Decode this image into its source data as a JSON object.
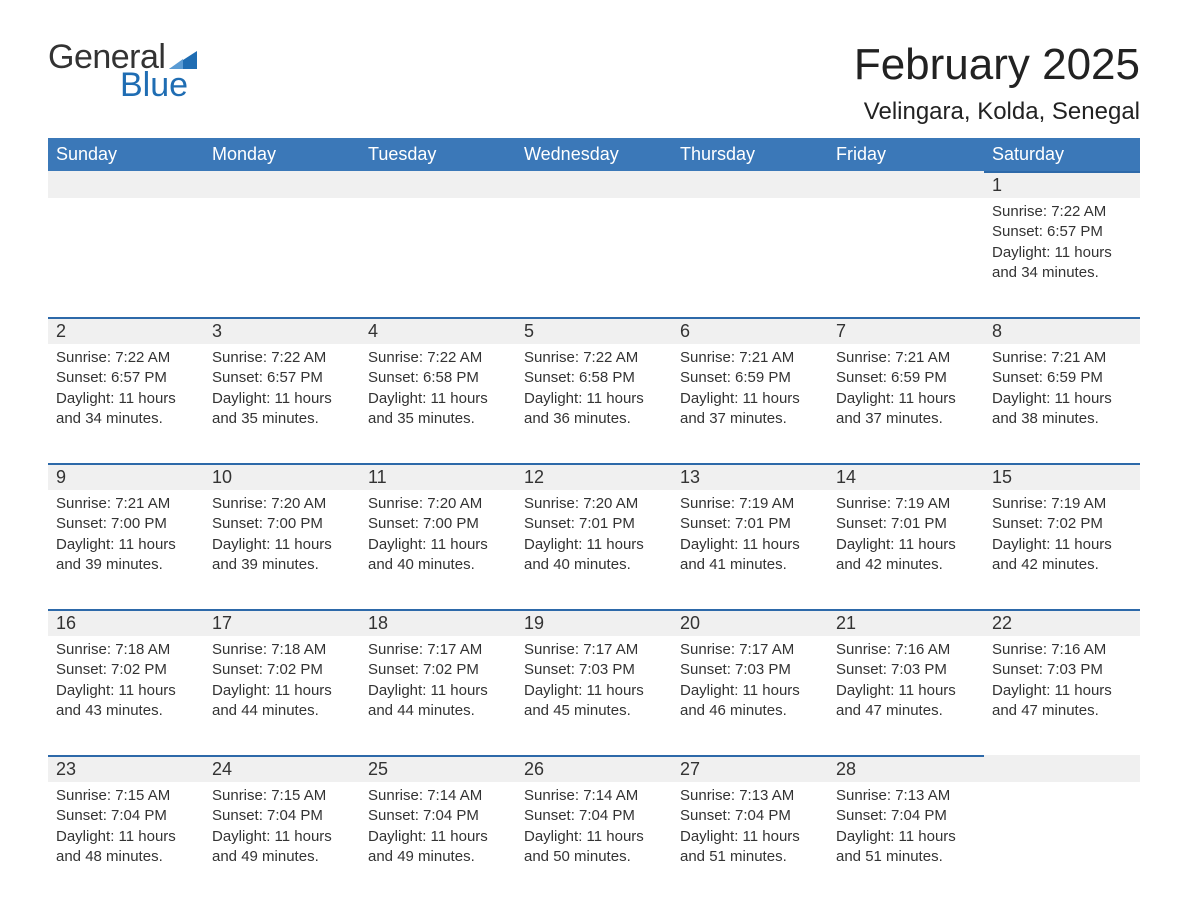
{
  "logo": {
    "word1": "General",
    "word2": "Blue",
    "word1_color": "#333333",
    "word2_color": "#1f6db3"
  },
  "title": "February 2025",
  "subtitle": "Velingara, Kolda, Senegal",
  "colors": {
    "header_bg": "#3b78b8",
    "header_text": "#ffffff",
    "date_row_bg": "#f0f0f0",
    "divider": "#2d69a9",
    "page_bg": "#ffffff",
    "text": "#222222"
  },
  "typography": {
    "title_fontsize": 44,
    "subtitle_fontsize": 24,
    "header_fontsize": 18,
    "daynum_fontsize": 18,
    "detail_fontsize": 15,
    "font_family": "Helvetica Neue"
  },
  "layout": {
    "columns": 7,
    "rows": 5,
    "first_weekday": "Sunday"
  },
  "weekday_headers": [
    "Sunday",
    "Monday",
    "Tuesday",
    "Wednesday",
    "Thursday",
    "Friday",
    "Saturday"
  ],
  "weeks": [
    [
      null,
      null,
      null,
      null,
      null,
      null,
      {
        "day": "1",
        "sunrise": "Sunrise: 7:22 AM",
        "sunset": "Sunset: 6:57 PM",
        "daylight": "Daylight: 11 hours and 34 minutes."
      }
    ],
    [
      {
        "day": "2",
        "sunrise": "Sunrise: 7:22 AM",
        "sunset": "Sunset: 6:57 PM",
        "daylight": "Daylight: 11 hours and 34 minutes."
      },
      {
        "day": "3",
        "sunrise": "Sunrise: 7:22 AM",
        "sunset": "Sunset: 6:57 PM",
        "daylight": "Daylight: 11 hours and 35 minutes."
      },
      {
        "day": "4",
        "sunrise": "Sunrise: 7:22 AM",
        "sunset": "Sunset: 6:58 PM",
        "daylight": "Daylight: 11 hours and 35 minutes."
      },
      {
        "day": "5",
        "sunrise": "Sunrise: 7:22 AM",
        "sunset": "Sunset: 6:58 PM",
        "daylight": "Daylight: 11 hours and 36 minutes."
      },
      {
        "day": "6",
        "sunrise": "Sunrise: 7:21 AM",
        "sunset": "Sunset: 6:59 PM",
        "daylight": "Daylight: 11 hours and 37 minutes."
      },
      {
        "day": "7",
        "sunrise": "Sunrise: 7:21 AM",
        "sunset": "Sunset: 6:59 PM",
        "daylight": "Daylight: 11 hours and 37 minutes."
      },
      {
        "day": "8",
        "sunrise": "Sunrise: 7:21 AM",
        "sunset": "Sunset: 6:59 PM",
        "daylight": "Daylight: 11 hours and 38 minutes."
      }
    ],
    [
      {
        "day": "9",
        "sunrise": "Sunrise: 7:21 AM",
        "sunset": "Sunset: 7:00 PM",
        "daylight": "Daylight: 11 hours and 39 minutes."
      },
      {
        "day": "10",
        "sunrise": "Sunrise: 7:20 AM",
        "sunset": "Sunset: 7:00 PM",
        "daylight": "Daylight: 11 hours and 39 minutes."
      },
      {
        "day": "11",
        "sunrise": "Sunrise: 7:20 AM",
        "sunset": "Sunset: 7:00 PM",
        "daylight": "Daylight: 11 hours and 40 minutes."
      },
      {
        "day": "12",
        "sunrise": "Sunrise: 7:20 AM",
        "sunset": "Sunset: 7:01 PM",
        "daylight": "Daylight: 11 hours and 40 minutes."
      },
      {
        "day": "13",
        "sunrise": "Sunrise: 7:19 AM",
        "sunset": "Sunset: 7:01 PM",
        "daylight": "Daylight: 11 hours and 41 minutes."
      },
      {
        "day": "14",
        "sunrise": "Sunrise: 7:19 AM",
        "sunset": "Sunset: 7:01 PM",
        "daylight": "Daylight: 11 hours and 42 minutes."
      },
      {
        "day": "15",
        "sunrise": "Sunrise: 7:19 AM",
        "sunset": "Sunset: 7:02 PM",
        "daylight": "Daylight: 11 hours and 42 minutes."
      }
    ],
    [
      {
        "day": "16",
        "sunrise": "Sunrise: 7:18 AM",
        "sunset": "Sunset: 7:02 PM",
        "daylight": "Daylight: 11 hours and 43 minutes."
      },
      {
        "day": "17",
        "sunrise": "Sunrise: 7:18 AM",
        "sunset": "Sunset: 7:02 PM",
        "daylight": "Daylight: 11 hours and 44 minutes."
      },
      {
        "day": "18",
        "sunrise": "Sunrise: 7:17 AM",
        "sunset": "Sunset: 7:02 PM",
        "daylight": "Daylight: 11 hours and 44 minutes."
      },
      {
        "day": "19",
        "sunrise": "Sunrise: 7:17 AM",
        "sunset": "Sunset: 7:03 PM",
        "daylight": "Daylight: 11 hours and 45 minutes."
      },
      {
        "day": "20",
        "sunrise": "Sunrise: 7:17 AM",
        "sunset": "Sunset: 7:03 PM",
        "daylight": "Daylight: 11 hours and 46 minutes."
      },
      {
        "day": "21",
        "sunrise": "Sunrise: 7:16 AM",
        "sunset": "Sunset: 7:03 PM",
        "daylight": "Daylight: 11 hours and 47 minutes."
      },
      {
        "day": "22",
        "sunrise": "Sunrise: 7:16 AM",
        "sunset": "Sunset: 7:03 PM",
        "daylight": "Daylight: 11 hours and 47 minutes."
      }
    ],
    [
      {
        "day": "23",
        "sunrise": "Sunrise: 7:15 AM",
        "sunset": "Sunset: 7:04 PM",
        "daylight": "Daylight: 11 hours and 48 minutes."
      },
      {
        "day": "24",
        "sunrise": "Sunrise: 7:15 AM",
        "sunset": "Sunset: 7:04 PM",
        "daylight": "Daylight: 11 hours and 49 minutes."
      },
      {
        "day": "25",
        "sunrise": "Sunrise: 7:14 AM",
        "sunset": "Sunset: 7:04 PM",
        "daylight": "Daylight: 11 hours and 49 minutes."
      },
      {
        "day": "26",
        "sunrise": "Sunrise: 7:14 AM",
        "sunset": "Sunset: 7:04 PM",
        "daylight": "Daylight: 11 hours and 50 minutes."
      },
      {
        "day": "27",
        "sunrise": "Sunrise: 7:13 AM",
        "sunset": "Sunset: 7:04 PM",
        "daylight": "Daylight: 11 hours and 51 minutes."
      },
      {
        "day": "28",
        "sunrise": "Sunrise: 7:13 AM",
        "sunset": "Sunset: 7:04 PM",
        "daylight": "Daylight: 11 hours and 51 minutes."
      },
      null
    ]
  ]
}
